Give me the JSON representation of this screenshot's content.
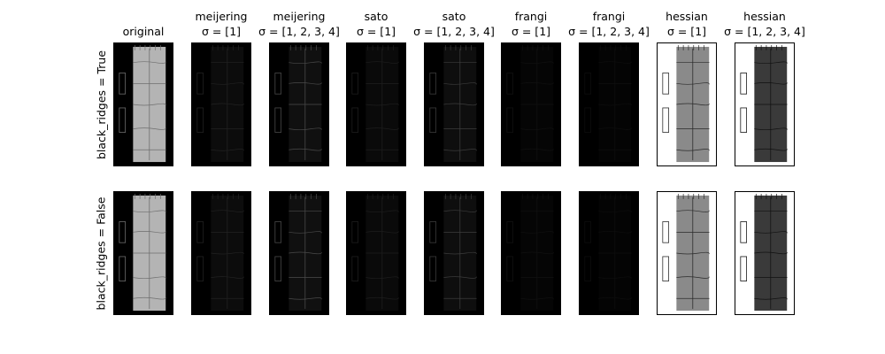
{
  "figure": {
    "columns": [
      {
        "id": "original",
        "line1": "",
        "line2": "original"
      },
      {
        "id": "meijering-1",
        "line1": "meijering",
        "line2": "σ = [1]"
      },
      {
        "id": "meijering-1234",
        "line1": "meijering",
        "line2": "σ = [1, 2, 3, 4]"
      },
      {
        "id": "sato-1",
        "line1": "sato",
        "line2": "σ = [1]"
      },
      {
        "id": "sato-1234",
        "line1": "sato",
        "line2": "σ = [1, 2, 3, 4]"
      },
      {
        "id": "frangi-1",
        "line1": "frangi",
        "line2": "σ = [1]"
      },
      {
        "id": "frangi-1234",
        "line1": "frangi",
        "line2": "σ = [1, 2, 3, 4]"
      },
      {
        "id": "hessian-1",
        "line1": "hessian",
        "line2": "σ = [1]"
      },
      {
        "id": "hessian-1234",
        "line1": "hessian",
        "line2": "σ = [1, 2, 3, 4]"
      }
    ],
    "rows": [
      {
        "id": "black-ridges-true",
        "label": "black_ridges = True"
      },
      {
        "id": "black-ridges-false",
        "label": "black_ridges = False"
      }
    ],
    "panel_styles": {
      "original": {
        "background": "#000000",
        "strip": "#b4b4b4",
        "lines": "#6e6e6e"
      },
      "meijering-1": {
        "background": "#000000",
        "strip": "#0c0c0c",
        "lines": "#222222"
      },
      "meijering-1234": {
        "background": "#000000",
        "strip": "#101010",
        "lines": "#4a4a4a"
      },
      "sato-1": {
        "background": "#000000",
        "strip": "#0a0a0a",
        "lines": "#1e1e1e"
      },
      "sato-1234": {
        "background": "#000000",
        "strip": "#0e0e0e",
        "lines": "#3c3c3c"
      },
      "frangi-1": {
        "background": "#000000",
        "strip": "#050505",
        "lines": "#111111"
      },
      "frangi-1234": {
        "background": "#000000",
        "strip": "#040404",
        "lines": "#0e0e0e"
      },
      "hessian-1": {
        "background": "#ffffff",
        "strip": "#8a8a8a",
        "lines": "#2a2a2a"
      },
      "hessian-1234": {
        "background": "#ffffff",
        "strip": "#3a3a3a",
        "lines": "#111111"
      }
    }
  }
}
